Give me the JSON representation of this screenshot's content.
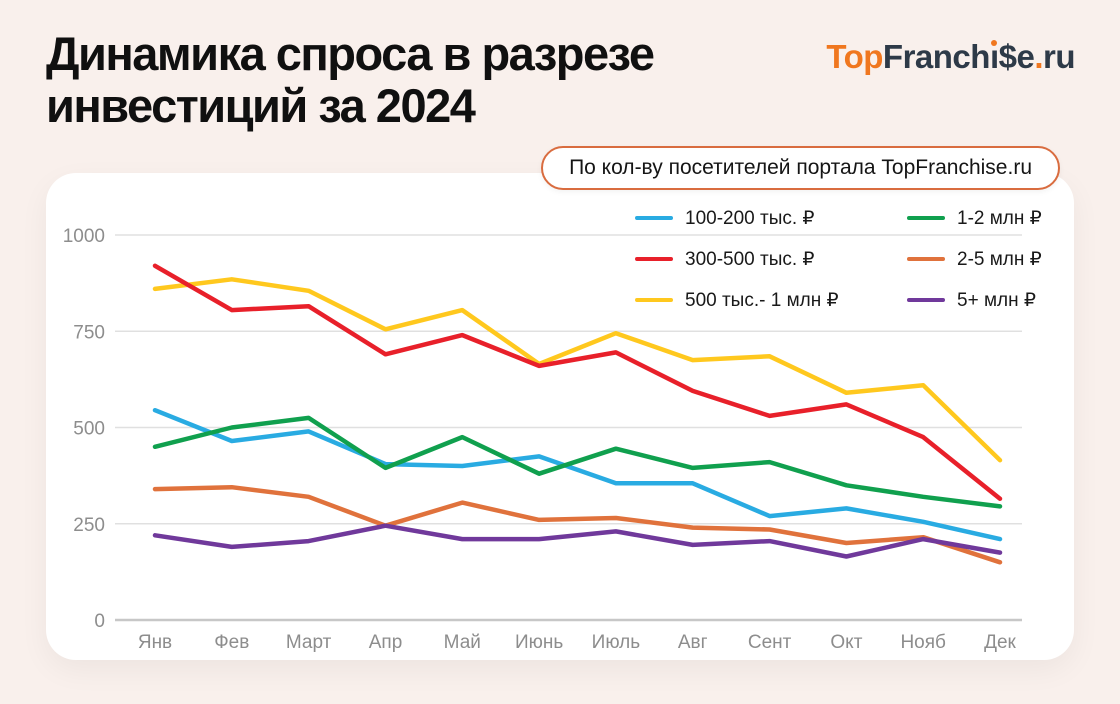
{
  "header": {
    "title_line1": "Динамика спроса в разрезе",
    "title_line2": "инвестиций за 2024",
    "badge": "По кол-ву посетителей портала TopFranchise.ru"
  },
  "brand": {
    "part_top": "Top",
    "part_franch": "Franch",
    "part_i": "ı",
    "part_se": "$e",
    "part_dot": ".",
    "part_ru": "ru",
    "orange_color": "#F0771F",
    "dark_color": "#2E3A48"
  },
  "chart_data": {
    "type": "line",
    "title": "Динамика спроса в разрезе инвестиций за 2024",
    "subtitle": "По кол-ву посетителей портала TopFranchise.ru",
    "categories": [
      "Янв",
      "Фев",
      "Март",
      "Апр",
      "Май",
      "Июнь",
      "Июль",
      "Авг",
      "Сент",
      "Окт",
      "Нояб",
      "Дек"
    ],
    "ylim": [
      0,
      1000
    ],
    "yticks": [
      0,
      250,
      500,
      750,
      1000
    ],
    "grid": true,
    "legend_position": "top-right",
    "series": [
      {
        "name": "100-200 тыс. ₽",
        "color": "#29ABE2",
        "values": [
          545,
          465,
          490,
          405,
          400,
          425,
          355,
          355,
          270,
          290,
          255,
          210
        ]
      },
      {
        "name": "300-500 тыс. ₽",
        "color": "#E8202A",
        "values": [
          920,
          805,
          815,
          690,
          740,
          660,
          695,
          595,
          530,
          560,
          475,
          315
        ]
      },
      {
        "name": "500 тыс.- 1 млн ₽",
        "color": "#FFC81E",
        "values": [
          860,
          885,
          855,
          755,
          805,
          665,
          745,
          675,
          685,
          590,
          610,
          415
        ]
      },
      {
        "name": "1-2 млн ₽",
        "color": "#10A04E",
        "values": [
          450,
          500,
          525,
          395,
          475,
          380,
          445,
          395,
          410,
          350,
          320,
          295
        ]
      },
      {
        "name": "2-5 млн ₽",
        "color": "#E0723C",
        "values": [
          340,
          345,
          320,
          245,
          305,
          260,
          265,
          240,
          235,
          200,
          215,
          150
        ]
      },
      {
        "name": "5+ млн ₽",
        "color": "#70399B",
        "values": [
          220,
          190,
          205,
          245,
          210,
          210,
          230,
          195,
          205,
          165,
          210,
          175
        ]
      }
    ],
    "legend_order": [
      0,
      3,
      1,
      4,
      2,
      5
    ],
    "draw_order": [
      0,
      3,
      2,
      1,
      4,
      5
    ],
    "axis_color": "#c7c7c7",
    "grid_color": "#e0e0e0"
  }
}
